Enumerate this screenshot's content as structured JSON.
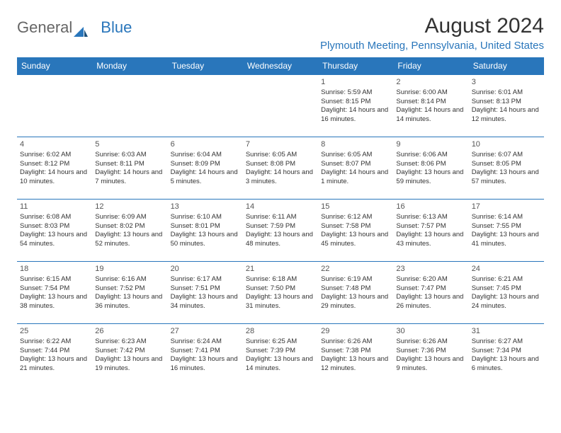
{
  "brand": {
    "part1": "General",
    "part2": "Blue"
  },
  "title": "August 2024",
  "location": "Plymouth Meeting, Pennsylvania, United States",
  "colors": {
    "header_bg": "#2976bb",
    "header_text": "#ffffff",
    "border": "#2976bb",
    "location_text": "#2976bb",
    "body_text": "#333333",
    "background": "#ffffff"
  },
  "weekdays": [
    "Sunday",
    "Monday",
    "Tuesday",
    "Wednesday",
    "Thursday",
    "Friday",
    "Saturday"
  ],
  "weeks": [
    [
      null,
      null,
      null,
      null,
      {
        "d": "1",
        "sr": "5:59 AM",
        "ss": "8:15 PM",
        "dl": "14 hours and 16 minutes."
      },
      {
        "d": "2",
        "sr": "6:00 AM",
        "ss": "8:14 PM",
        "dl": "14 hours and 14 minutes."
      },
      {
        "d": "3",
        "sr": "6:01 AM",
        "ss": "8:13 PM",
        "dl": "14 hours and 12 minutes."
      }
    ],
    [
      {
        "d": "4",
        "sr": "6:02 AM",
        "ss": "8:12 PM",
        "dl": "14 hours and 10 minutes."
      },
      {
        "d": "5",
        "sr": "6:03 AM",
        "ss": "8:11 PM",
        "dl": "14 hours and 7 minutes."
      },
      {
        "d": "6",
        "sr": "6:04 AM",
        "ss": "8:09 PM",
        "dl": "14 hours and 5 minutes."
      },
      {
        "d": "7",
        "sr": "6:05 AM",
        "ss": "8:08 PM",
        "dl": "14 hours and 3 minutes."
      },
      {
        "d": "8",
        "sr": "6:05 AM",
        "ss": "8:07 PM",
        "dl": "14 hours and 1 minute."
      },
      {
        "d": "9",
        "sr": "6:06 AM",
        "ss": "8:06 PM",
        "dl": "13 hours and 59 minutes."
      },
      {
        "d": "10",
        "sr": "6:07 AM",
        "ss": "8:05 PM",
        "dl": "13 hours and 57 minutes."
      }
    ],
    [
      {
        "d": "11",
        "sr": "6:08 AM",
        "ss": "8:03 PM",
        "dl": "13 hours and 54 minutes."
      },
      {
        "d": "12",
        "sr": "6:09 AM",
        "ss": "8:02 PM",
        "dl": "13 hours and 52 minutes."
      },
      {
        "d": "13",
        "sr": "6:10 AM",
        "ss": "8:01 PM",
        "dl": "13 hours and 50 minutes."
      },
      {
        "d": "14",
        "sr": "6:11 AM",
        "ss": "7:59 PM",
        "dl": "13 hours and 48 minutes."
      },
      {
        "d": "15",
        "sr": "6:12 AM",
        "ss": "7:58 PM",
        "dl": "13 hours and 45 minutes."
      },
      {
        "d": "16",
        "sr": "6:13 AM",
        "ss": "7:57 PM",
        "dl": "13 hours and 43 minutes."
      },
      {
        "d": "17",
        "sr": "6:14 AM",
        "ss": "7:55 PM",
        "dl": "13 hours and 41 minutes."
      }
    ],
    [
      {
        "d": "18",
        "sr": "6:15 AM",
        "ss": "7:54 PM",
        "dl": "13 hours and 38 minutes."
      },
      {
        "d": "19",
        "sr": "6:16 AM",
        "ss": "7:52 PM",
        "dl": "13 hours and 36 minutes."
      },
      {
        "d": "20",
        "sr": "6:17 AM",
        "ss": "7:51 PM",
        "dl": "13 hours and 34 minutes."
      },
      {
        "d": "21",
        "sr": "6:18 AM",
        "ss": "7:50 PM",
        "dl": "13 hours and 31 minutes."
      },
      {
        "d": "22",
        "sr": "6:19 AM",
        "ss": "7:48 PM",
        "dl": "13 hours and 29 minutes."
      },
      {
        "d": "23",
        "sr": "6:20 AM",
        "ss": "7:47 PM",
        "dl": "13 hours and 26 minutes."
      },
      {
        "d": "24",
        "sr": "6:21 AM",
        "ss": "7:45 PM",
        "dl": "13 hours and 24 minutes."
      }
    ],
    [
      {
        "d": "25",
        "sr": "6:22 AM",
        "ss": "7:44 PM",
        "dl": "13 hours and 21 minutes."
      },
      {
        "d": "26",
        "sr": "6:23 AM",
        "ss": "7:42 PM",
        "dl": "13 hours and 19 minutes."
      },
      {
        "d": "27",
        "sr": "6:24 AM",
        "ss": "7:41 PM",
        "dl": "13 hours and 16 minutes."
      },
      {
        "d": "28",
        "sr": "6:25 AM",
        "ss": "7:39 PM",
        "dl": "13 hours and 14 minutes."
      },
      {
        "d": "29",
        "sr": "6:26 AM",
        "ss": "7:38 PM",
        "dl": "13 hours and 12 minutes."
      },
      {
        "d": "30",
        "sr": "6:26 AM",
        "ss": "7:36 PM",
        "dl": "13 hours and 9 minutes."
      },
      {
        "d": "31",
        "sr": "6:27 AM",
        "ss": "7:34 PM",
        "dl": "13 hours and 6 minutes."
      }
    ]
  ],
  "labels": {
    "sunrise": "Sunrise:",
    "sunset": "Sunset:",
    "daylight": "Daylight:"
  }
}
